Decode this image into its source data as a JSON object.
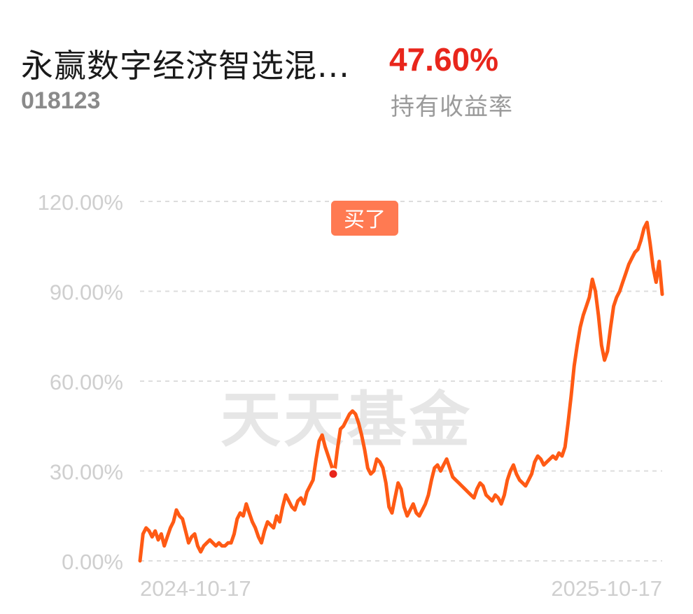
{
  "header": {
    "fund_name": "永赢数字经济智选混...",
    "fund_code": "018123",
    "return_value": "47.60%",
    "return_label": "持有收益率"
  },
  "watermark": "天天基金",
  "buy_marker": {
    "label": "买了",
    "date_fraction": 0.37,
    "value": 29
  },
  "colors": {
    "line": "#ff5a14",
    "return": "#e8261c",
    "buy_tag": "#ff7a52",
    "grid": "#dddddd",
    "axis_text": "#cfcfcf"
  },
  "chart_data": {
    "type": "line",
    "title": "",
    "xlabel": "",
    "ylabel": "",
    "y_ticks": [
      0,
      30,
      60,
      90,
      120
    ],
    "y_tick_labels": [
      "0.00%",
      "30.00%",
      "60.00%",
      "90.00%",
      "120.00%"
    ],
    "ylim": [
      0,
      120
    ],
    "x_tick_labels": [
      "2024-10-17",
      "2025-10-17"
    ],
    "grid": true,
    "values": [
      0,
      9,
      11,
      10,
      8,
      10,
      7,
      9,
      5,
      8,
      11,
      13,
      17,
      15,
      14,
      10,
      6,
      8,
      9,
      5,
      3,
      5,
      6,
      7,
      6,
      5,
      6,
      5,
      5,
      6,
      6,
      9,
      14,
      16,
      15,
      19,
      16,
      13,
      11,
      8,
      6,
      10,
      13,
      12,
      11,
      15,
      13,
      18,
      22,
      20,
      18,
      17,
      20,
      21,
      19,
      23,
      25,
      27,
      34,
      40,
      42,
      38,
      35,
      32,
      29,
      37,
      44,
      45,
      47,
      49,
      50,
      49,
      46,
      42,
      37,
      31,
      29,
      30,
      34,
      33,
      31,
      26,
      18,
      16,
      21,
      26,
      24,
      18,
      15,
      17,
      19,
      16,
      15,
      17,
      19,
      22,
      27,
      31,
      32,
      30,
      32,
      34,
      31,
      28,
      27,
      26,
      25,
      24,
      23,
      22,
      21,
      24,
      26,
      25,
      22,
      21,
      20,
      22,
      21,
      19,
      22,
      27,
      30,
      32,
      29,
      27,
      26,
      25,
      27,
      29,
      33,
      35,
      34,
      32,
      33,
      34,
      35,
      34,
      36,
      35,
      38,
      46,
      55,
      65,
      72,
      78,
      82,
      85,
      88,
      94,
      90,
      82,
      72,
      67,
      70,
      78,
      85,
      88,
      90,
      93,
      96,
      99,
      101,
      103,
      104,
      107,
      111,
      113,
      106,
      98,
      93,
      100,
      89
    ]
  }
}
